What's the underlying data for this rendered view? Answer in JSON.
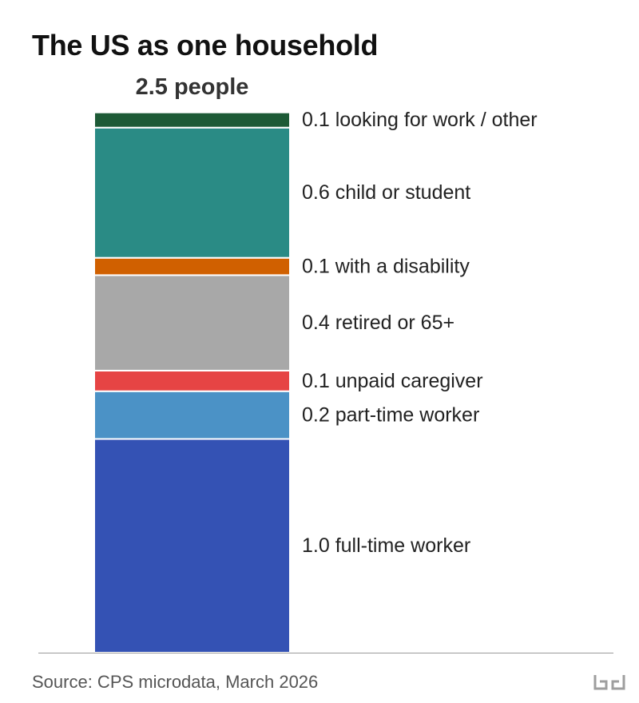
{
  "title": "The US as one household",
  "source": "Source: CPS microdata, March 2026",
  "logo": {
    "icon": "bd-logo-icon",
    "color": "#9e9e9e"
  },
  "chart_data": {
    "type": "bar",
    "stacked": true,
    "title": "The US as one household",
    "total": 2.5,
    "total_label": "2.5 people",
    "ylim": [
      0,
      2.5
    ],
    "series": [
      {
        "name": "full-time worker",
        "value": 1.0,
        "value_exact": 0.985,
        "label": "1.0 full-time worker",
        "color": "#3452b4"
      },
      {
        "name": "part-time worker",
        "value": 0.2,
        "value_exact": 0.22,
        "label": "0.2 part-time worker",
        "color": "#4b92c6"
      },
      {
        "name": "unpaid caregiver",
        "value": 0.1,
        "value_exact": 0.095,
        "label": "0.1 unpaid caregiver",
        "color": "#e64444"
      },
      {
        "name": "retired or 65+",
        "value": 0.4,
        "value_exact": 0.44,
        "label": "0.4 retired or 65+",
        "color": "#a8a8a8"
      },
      {
        "name": "with a disability",
        "value": 0.1,
        "value_exact": 0.08,
        "label": "0.1 with a disability",
        "color": "#d06000"
      },
      {
        "name": "child or student",
        "value": 0.6,
        "value_exact": 0.6,
        "label": "0.6 child or student",
        "color": "#2a8b85"
      },
      {
        "name": "looking for work / other",
        "value": 0.1,
        "value_exact": 0.07,
        "label": "0.1 looking for work / other",
        "color": "#1d5a36"
      }
    ]
  }
}
